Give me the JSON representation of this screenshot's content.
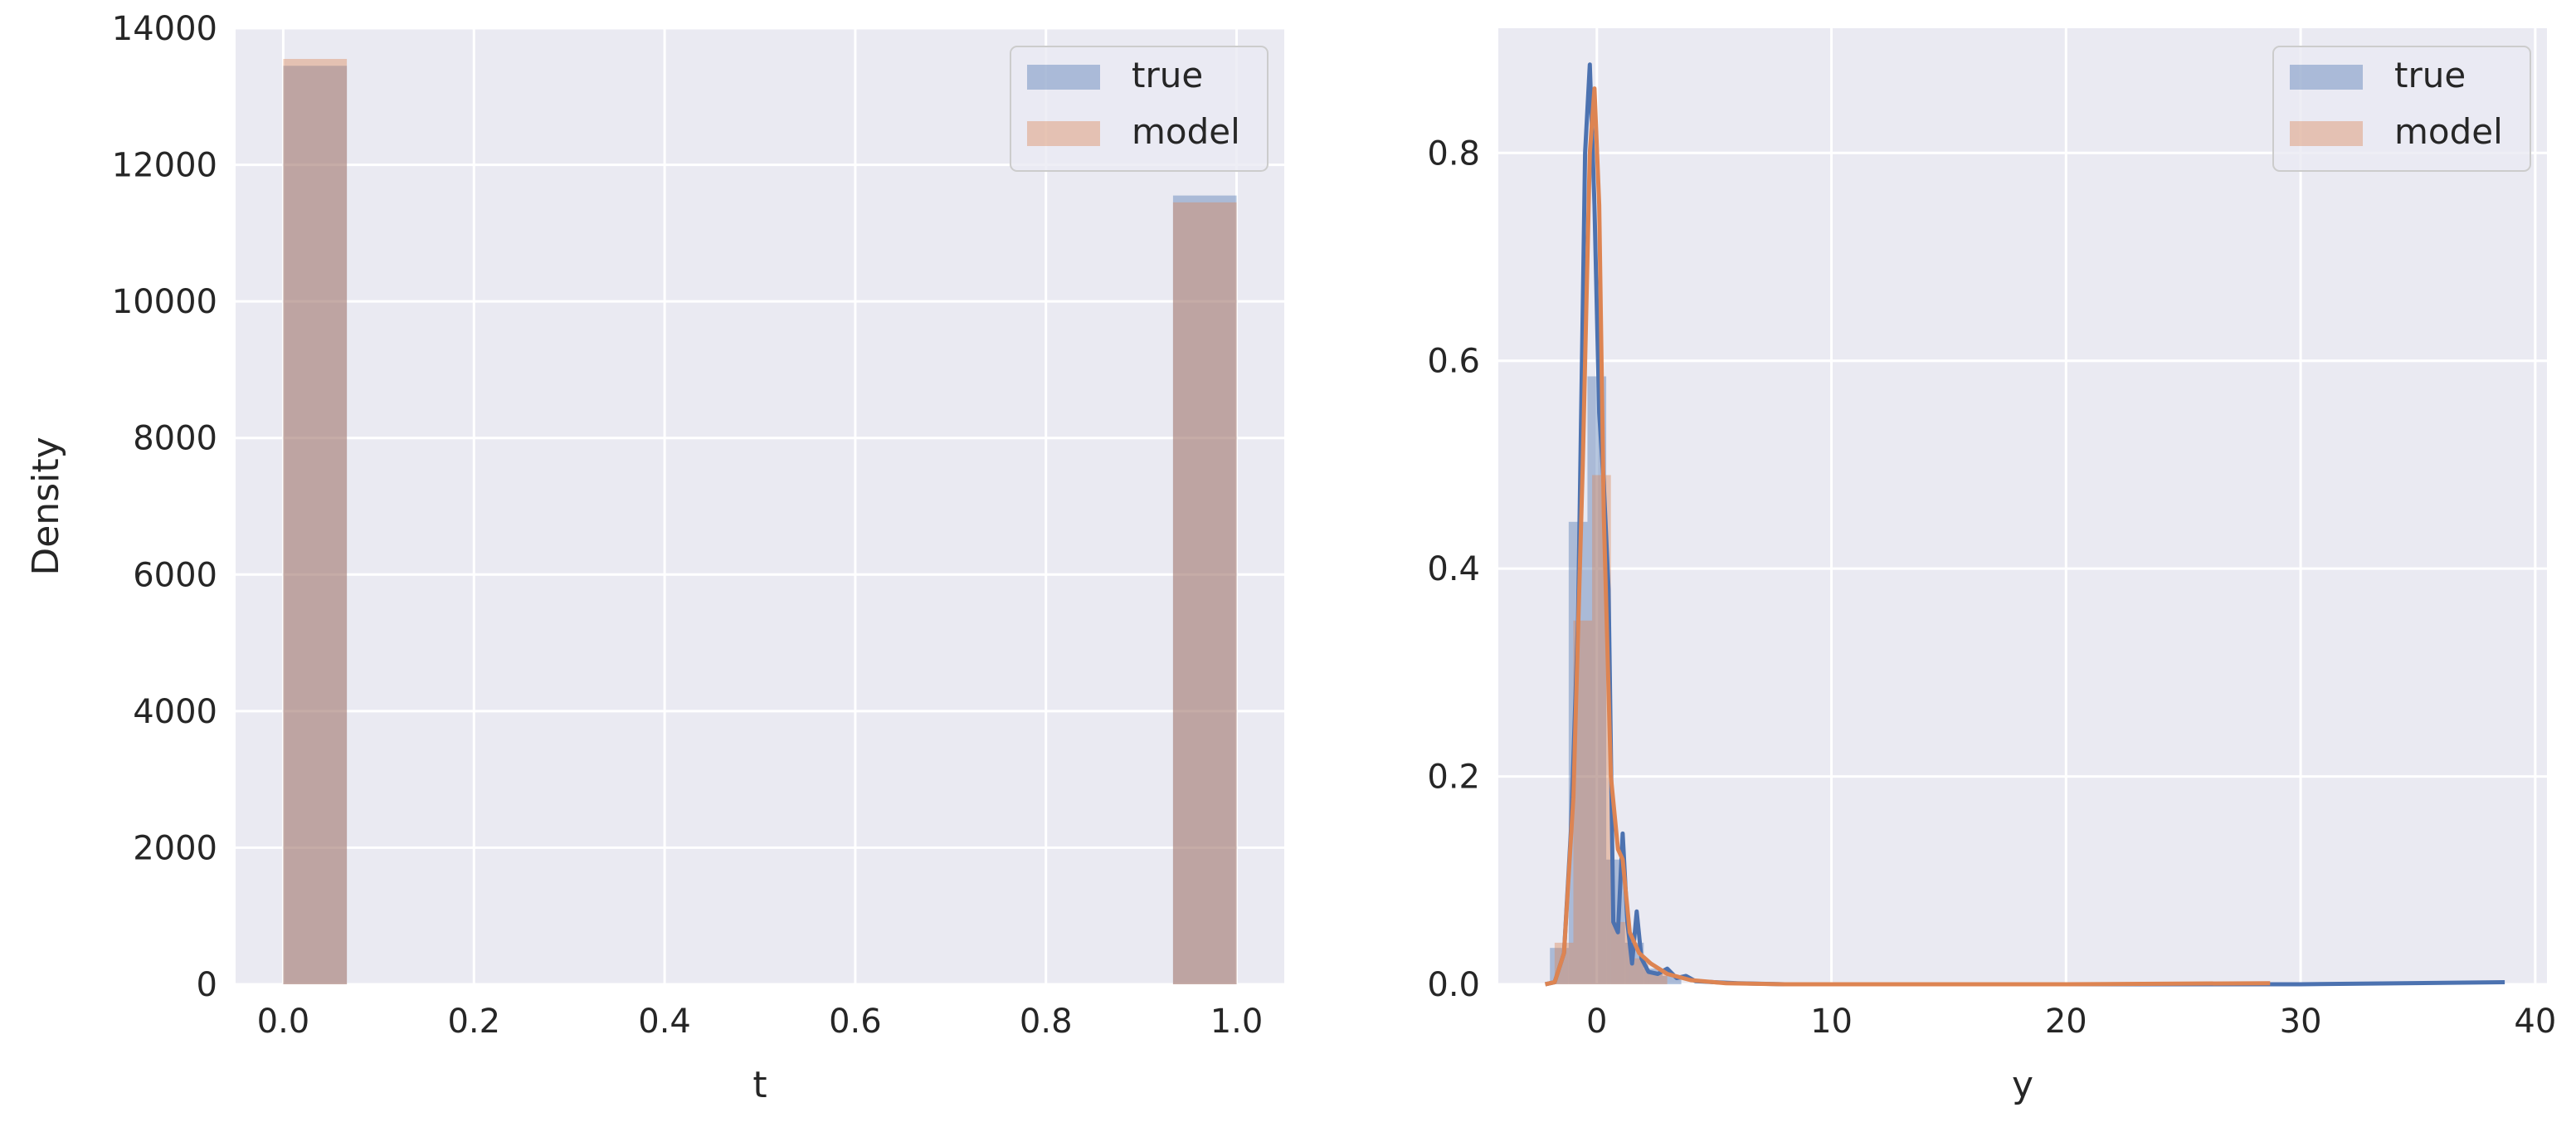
{
  "chart_data": [
    {
      "type": "bar",
      "xlabel": "t",
      "ylabel": "Density",
      "xlim": [
        -0.05,
        1.05
      ],
      "ylim": [
        0,
        14000
      ],
      "xticks": [
        "0.0",
        "0.2",
        "0.4",
        "0.6",
        "0.8",
        "1.0"
      ],
      "yticks": [
        "0",
        "2000",
        "4000",
        "6000",
        "8000",
        "10000",
        "12000",
        "14000"
      ],
      "grid": true,
      "legend_position": "upper right",
      "series": [
        {
          "name": "true",
          "color": "#4c72b0",
          "bins": [
            [
              0.0,
              0.0667,
              13450
            ],
            [
              0.9333,
              1.0,
              11550
            ]
          ]
        },
        {
          "name": "model",
          "color": "#dd8452",
          "bins": [
            [
              0.0,
              0.0667,
              13550
            ],
            [
              0.9333,
              1.0,
              11450
            ]
          ]
        }
      ],
      "legend": [
        "true",
        "model"
      ]
    },
    {
      "type": "histogram+kde",
      "xlabel": "y",
      "ylabel": "",
      "xlim": [
        -4.2,
        40.5
      ],
      "ylim": [
        0,
        0.92
      ],
      "xticks": [
        "0",
        "10",
        "20",
        "30",
        "40"
      ],
      "yticks": [
        "0.0",
        "0.2",
        "0.4",
        "0.6",
        "0.8"
      ],
      "grid": true,
      "legend_position": "upper right",
      "legend": [
        "true",
        "model"
      ],
      "series": [
        {
          "name": "true",
          "color": "#4c72b0",
          "hist": [
            [
              -1.6,
              0.035
            ],
            [
              -0.8,
              0.445
            ],
            [
              0.0,
              0.585
            ],
            [
              0.8,
              0.12
            ],
            [
              1.6,
              0.04
            ],
            [
              2.4,
              0.015
            ],
            [
              3.2,
              0.008
            ]
          ],
          "kde": [
            [
              -2.2,
              0.0
            ],
            [
              -1.8,
              0.002
            ],
            [
              -1.4,
              0.03
            ],
            [
              -1.1,
              0.15
            ],
            [
              -0.8,
              0.35
            ],
            [
              -0.5,
              0.8
            ],
            [
              -0.3,
              0.885
            ],
            [
              -0.1,
              0.75
            ],
            [
              0.1,
              0.55
            ],
            [
              0.3,
              0.48
            ],
            [
              0.5,
              0.38
            ],
            [
              0.7,
              0.06
            ],
            [
              0.9,
              0.05
            ],
            [
              1.1,
              0.145
            ],
            [
              1.3,
              0.06
            ],
            [
              1.5,
              0.02
            ],
            [
              1.7,
              0.07
            ],
            [
              1.9,
              0.025
            ],
            [
              2.2,
              0.012
            ],
            [
              2.6,
              0.01
            ],
            [
              3.0,
              0.015
            ],
            [
              3.4,
              0.006
            ],
            [
              3.8,
              0.008
            ],
            [
              4.2,
              0.003
            ],
            [
              5.0,
              0.002
            ],
            [
              6.0,
              0.001
            ],
            [
              8.0,
              0.0
            ],
            [
              20.0,
              0.0
            ],
            [
              30.0,
              0.0
            ],
            [
              38.7,
              0.002
            ]
          ]
        },
        {
          "name": "model",
          "color": "#dd8452",
          "hist": [
            [
              -1.4,
              0.04
            ],
            [
              -0.6,
              0.35
            ],
            [
              0.2,
              0.49
            ],
            [
              1.0,
              0.06
            ],
            [
              1.8,
              0.025
            ],
            [
              2.6,
              0.01
            ]
          ],
          "kde": [
            [
              -2.2,
              0.0
            ],
            [
              -1.8,
              0.002
            ],
            [
              -1.4,
              0.03
            ],
            [
              -1.0,
              0.18
            ],
            [
              -0.6,
              0.5
            ],
            [
              -0.3,
              0.8
            ],
            [
              -0.1,
              0.862
            ],
            [
              0.1,
              0.75
            ],
            [
              0.3,
              0.45
            ],
            [
              0.6,
              0.2
            ],
            [
              0.9,
              0.13
            ],
            [
              1.1,
              0.12
            ],
            [
              1.4,
              0.05
            ],
            [
              1.8,
              0.03
            ],
            [
              2.3,
              0.02
            ],
            [
              3.0,
              0.01
            ],
            [
              4.0,
              0.004
            ],
            [
              5.5,
              0.001
            ],
            [
              8.0,
              0.0
            ],
            [
              20.0,
              0.0
            ],
            [
              28.7,
              0.001
            ]
          ]
        }
      ]
    }
  ]
}
